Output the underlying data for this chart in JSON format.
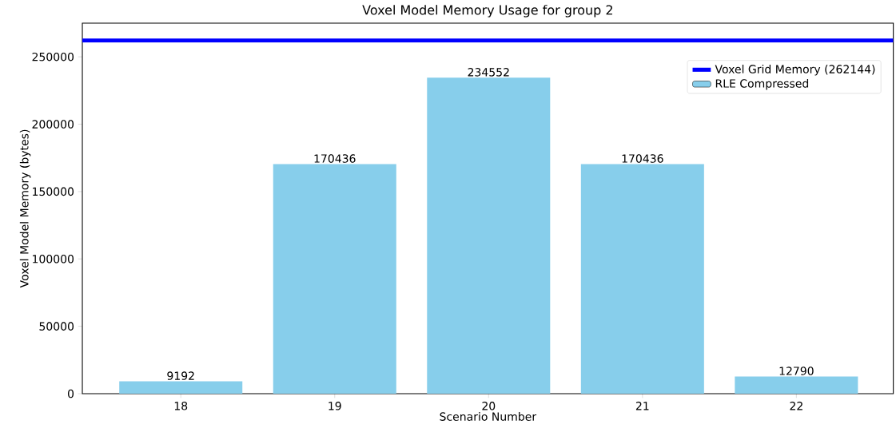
{
  "chart_data": {
    "type": "bar",
    "title": "Voxel Model Memory Usage for group 2",
    "xlabel": "Scenario Number",
    "ylabel": "Voxel Model Memory (bytes)",
    "categories": [
      "18",
      "19",
      "20",
      "21",
      "22"
    ],
    "series": [
      {
        "name": "RLE Compressed",
        "color": "#87ceeb",
        "values": [
          9192,
          170436,
          234552,
          170436,
          12790
        ]
      }
    ],
    "ref_lines": [
      {
        "axis": "y",
        "value": 262144,
        "label": "Voxel Grid Memory (262144)",
        "color": "#0000ff",
        "line_style": "solid"
      }
    ],
    "ylim": [
      0,
      275000
    ],
    "yticks": [
      0,
      50000,
      100000,
      150000,
      200000,
      250000
    ],
    "data_labels": true,
    "legend": "top right",
    "grid": false
  }
}
